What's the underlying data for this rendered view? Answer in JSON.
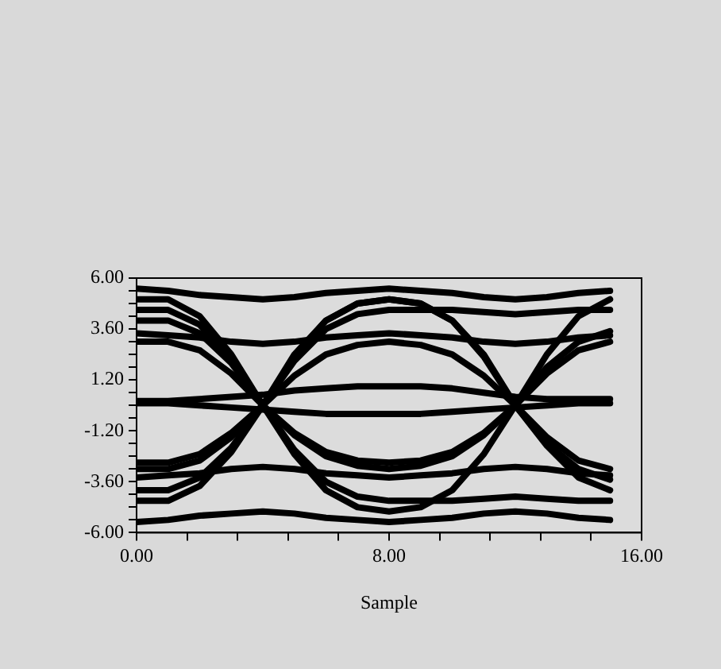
{
  "chart_data": {
    "type": "line",
    "xlabel": "Sample",
    "x": [
      0,
      1,
      2,
      3,
      4,
      5,
      6,
      7,
      8,
      9,
      10,
      11,
      12,
      13,
      14,
      15
    ],
    "xlim": [
      0,
      16
    ],
    "xticks": [
      {
        "value": 0,
        "label": "0.00"
      },
      {
        "value": 1.6,
        "label": null
      },
      {
        "value": 3.2,
        "label": null
      },
      {
        "value": 4.8,
        "label": null
      },
      {
        "value": 6.4,
        "label": null
      },
      {
        "value": 8,
        "label": "8.00"
      },
      {
        "value": 9.6,
        "label": null
      },
      {
        "value": 11.2,
        "label": null
      },
      {
        "value": 12.8,
        "label": null
      },
      {
        "value": 14.4,
        "label": null
      },
      {
        "value": 16,
        "label": "16.00"
      }
    ],
    "ylim": [
      -6,
      6
    ],
    "yticks": [
      {
        "value": -6,
        "label": "-6.00"
      },
      {
        "value": -5.4,
        "label": null
      },
      {
        "value": -4.8,
        "label": null
      },
      {
        "value": -4.2,
        "label": null
      },
      {
        "value": -3.6,
        "label": "-3.60"
      },
      {
        "value": -3,
        "label": null
      },
      {
        "value": -2.4,
        "label": null
      },
      {
        "value": -1.8,
        "label": null
      },
      {
        "value": -1.2,
        "label": "-1.20"
      },
      {
        "value": -0.6,
        "label": null
      },
      {
        "value": 0,
        "label": null
      },
      {
        "value": 0.6,
        "label": null
      },
      {
        "value": 1.2,
        "label": "1.20"
      },
      {
        "value": 1.8,
        "label": null
      },
      {
        "value": 2.4,
        "label": null
      },
      {
        "value": 3,
        "label": null
      },
      {
        "value": 3.6,
        "label": "3.60"
      },
      {
        "value": 4.2,
        "label": null
      },
      {
        "value": 4.8,
        "label": null
      },
      {
        "value": 5.4,
        "label": null
      },
      {
        "value": 6,
        "label": "6.00"
      }
    ],
    "grid": false,
    "legend": false,
    "marker": "none",
    "line_style": "solid",
    "series": [
      {
        "color": "#000000",
        "values": [
          5.5,
          5.4,
          5.2,
          5.1,
          5.0,
          5.1,
          5.3,
          5.4,
          5.5,
          5.4,
          5.3,
          5.1,
          5.0,
          5.1,
          5.3,
          5.4
        ]
      },
      {
        "color": "#000000",
        "values": [
          -5.5,
          -5.4,
          -5.2,
          -5.1,
          -5.0,
          -5.1,
          -5.3,
          -5.4,
          -5.5,
          -5.4,
          -5.3,
          -5.1,
          -5.0,
          -5.1,
          -5.3,
          -5.4
        ]
      },
      {
        "color": "#000000",
        "values": [
          3.0,
          3.0,
          2.6,
          1.5,
          0,
          -1.4,
          -2.4,
          -2.85,
          -3.0,
          -2.85,
          -2.4,
          -1.4,
          0,
          1.5,
          2.6,
          3.0
        ]
      },
      {
        "color": "#000000",
        "values": [
          -3.0,
          -3.0,
          -2.6,
          -1.5,
          0,
          1.4,
          2.4,
          2.85,
          3.0,
          2.85,
          2.4,
          1.4,
          0,
          -1.5,
          -2.6,
          -3.0
        ]
      },
      {
        "color": "#000000",
        "values": [
          4.5,
          4.5,
          3.8,
          2.2,
          0,
          -2.1,
          -3.6,
          -4.3,
          -4.5,
          -4.5,
          -4.5,
          -4.4,
          -4.3,
          -4.4,
          -4.5,
          -4.5
        ]
      },
      {
        "color": "#000000",
        "values": [
          -4.5,
          -4.5,
          -3.8,
          -2.2,
          0,
          2.1,
          3.6,
          4.3,
          4.5,
          4.5,
          4.5,
          4.4,
          4.3,
          4.4,
          4.5,
          4.5
        ]
      },
      {
        "color": "#000000",
        "values": [
          5.0,
          5.0,
          4.2,
          2.4,
          0,
          -1.3,
          -2.2,
          -2.6,
          -2.7,
          -2.6,
          -2.2,
          -1.3,
          0,
          2.4,
          4.2,
          5.0
        ]
      },
      {
        "color": "#000000",
        "values": [
          -2.7,
          -2.7,
          -2.3,
          -1.3,
          0,
          2.4,
          4.0,
          4.8,
          5.0,
          4.8,
          4.0,
          2.4,
          0,
          -1.9,
          -3.4,
          -4.0
        ]
      },
      {
        "color": "#000000",
        "values": [
          3.4,
          3.3,
          3.2,
          3.0,
          2.9,
          3.0,
          3.2,
          3.3,
          3.4,
          3.3,
          3.2,
          3.0,
          2.9,
          3.0,
          3.2,
          3.3
        ]
      },
      {
        "color": "#000000",
        "values": [
          -3.4,
          -3.3,
          -3.2,
          -3.0,
          -2.9,
          -3.0,
          -3.2,
          -3.3,
          -3.4,
          -3.3,
          -3.2,
          -3.0,
          -2.9,
          -3.0,
          -3.2,
          -3.3
        ]
      },
      {
        "color": "#000000",
        "values": [
          4.0,
          4.0,
          3.4,
          2.0,
          0,
          -2.3,
          -4.0,
          -4.8,
          -5.0,
          -4.8,
          -4.0,
          -2.3,
          0,
          1.8,
          3.0,
          3.5
        ]
      },
      {
        "color": "#000000",
        "values": [
          -4.0,
          -4.0,
          -3.4,
          -2.0,
          0,
          2.3,
          4.0,
          4.8,
          5.0,
          4.8,
          4.0,
          2.3,
          0,
          -1.8,
          -3.0,
          -3.5
        ]
      },
      {
        "color": "#000000",
        "values": [
          0.2,
          0.2,
          0.3,
          0.4,
          0.5,
          0.7,
          0.8,
          0.9,
          0.9,
          0.9,
          0.8,
          0.6,
          0.4,
          0.3,
          0.3,
          0.3
        ]
      },
      {
        "color": "#000000",
        "values": [
          0.1,
          0.1,
          0.0,
          -0.1,
          -0.2,
          -0.3,
          -0.4,
          -0.4,
          -0.4,
          -0.4,
          -0.3,
          -0.2,
          -0.1,
          0.0,
          0.1,
          0.1
        ]
      }
    ]
  }
}
